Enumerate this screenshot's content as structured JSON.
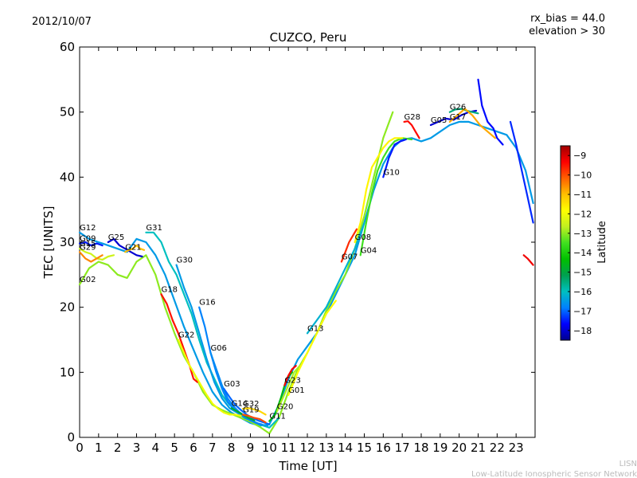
{
  "header": {
    "date": "2012/10/07",
    "bias": "rx_bias = 44.0",
    "elevation": "elevation > 30"
  },
  "footer": {
    "line1": "LISN",
    "line2": "Low-Latitude Ionospheric Sensor Network"
  },
  "colors": {
    "lat_scale": [
      "#00008f",
      "#0000ff",
      "#0080ff",
      "#00c0c0",
      "#00a050",
      "#00c000",
      "#40e020",
      "#c0f020",
      "#ffff00",
      "#ffc000",
      "#ff6000",
      "#ff0000",
      "#a00000"
    ],
    "footer_text": "#bbbbbb"
  },
  "chart_data": {
    "type": "line",
    "title": "CUZCO, Peru",
    "xlabel": "Time [UT]",
    "ylabel": "TEC [UNITS]",
    "xlim": [
      0,
      24
    ],
    "ylim": [
      0,
      60
    ],
    "xticks": [
      0,
      1,
      2,
      3,
      4,
      5,
      6,
      7,
      8,
      9,
      10,
      11,
      12,
      13,
      14,
      15,
      16,
      17,
      18,
      19,
      20,
      21,
      22,
      23
    ],
    "yticks": [
      0,
      10,
      20,
      30,
      40,
      50,
      60
    ],
    "grid": false,
    "colorbar": {
      "label": "Latitude",
      "min": -18.5,
      "max": -8.5,
      "ticks": [
        -9,
        -10,
        -11,
        -12,
        -13,
        -14,
        -15,
        -16,
        -17,
        -18
      ]
    },
    "series": [
      {
        "name": "G12",
        "lat": -16.5,
        "x": [
          0,
          0.5,
          1,
          1.5,
          2,
          2.5,
          3,
          3.5,
          4,
          4.5,
          5,
          5.5,
          6,
          6.5,
          7,
          7.5,
          8,
          8.5,
          9,
          9.5,
          10,
          10.5,
          11,
          11.5,
          12,
          12.5,
          13,
          13.5,
          14,
          14.5,
          15,
          15.5,
          16,
          16.5,
          17,
          17.5,
          18,
          18.5,
          19,
          19.5,
          20,
          20.5,
          21,
          21.5,
          22,
          22.5,
          23,
          23.5,
          23.9
        ],
        "y": [
          31.5,
          30.5,
          30,
          29.5,
          29,
          28.5,
          30.5,
          30,
          28,
          25,
          21,
          17,
          13.5,
          10,
          7,
          5,
          3.8,
          3,
          2.2,
          1.8,
          2,
          5,
          9,
          12,
          14,
          16,
          19,
          22,
          25,
          28,
          33,
          38,
          42,
          44.5,
          45.8,
          46,
          45.5,
          46,
          47,
          48,
          48.5,
          48.5,
          48,
          47.5,
          47,
          46.5,
          44.5,
          41,
          36
        ]
      },
      {
        "name": "G09",
        "lat": -17.5,
        "x": [
          0,
          0.3,
          0.6,
          0.9,
          1.2
        ],
        "y": [
          29.8,
          30,
          29.5,
          29.8,
          29.5
        ]
      },
      {
        "name": "G15",
        "lat": -12.5,
        "x": [
          0,
          0.3,
          0.6,
          0.9,
          1.2,
          1.5,
          1.8
        ],
        "y": [
          29,
          28.5,
          28.2,
          27.5,
          27.3,
          27.8,
          28
        ]
      },
      {
        "name": "G29",
        "lat": -10.5,
        "x": [
          0,
          0.3,
          0.6,
          0.9,
          1.2
        ],
        "y": [
          28.5,
          27.5,
          27,
          27.5,
          28
        ]
      },
      {
        "name": "G02",
        "lat": -13,
        "x": [
          0,
          0.5,
          1,
          1.5,
          2,
          2.5,
          3,
          3.5,
          4,
          4.5,
          5,
          5.5,
          6,
          6.5,
          7,
          7.5,
          8,
          8.5,
          9,
          9.5,
          10,
          10.5,
          11,
          11.5,
          12,
          12.5,
          13,
          13.5,
          14,
          14.5,
          15,
          15.5,
          16,
          16.5
        ],
        "y": [
          23.5,
          26,
          27,
          26.5,
          25,
          24.5,
          27,
          28,
          25,
          20,
          16,
          12.5,
          10,
          7,
          5,
          4.2,
          3.6,
          3,
          2.4,
          1.6,
          0.6,
          3,
          7,
          10.5,
          13,
          16,
          19.5,
          22.5,
          25,
          29,
          34,
          40,
          46,
          50
        ]
      },
      {
        "name": "G25",
        "lat": -18,
        "x": [
          1.5,
          1.8,
          2.1,
          2.4,
          2.7,
          3,
          3.3
        ],
        "y": [
          30,
          30.5,
          29.5,
          29,
          28.5,
          28,
          27.8
        ]
      },
      {
        "name": "G21",
        "lat": -11,
        "x": [
          2.4,
          2.6,
          2.8,
          3,
          3.2,
          3.4
        ],
        "y": [
          28.5,
          28.8,
          29,
          29.5,
          29,
          28.8
        ]
      },
      {
        "name": "G31",
        "lat": -16,
        "x": [
          3.5,
          3.9,
          4.3,
          4.7,
          5.1,
          5.5,
          5.9,
          6.3,
          6.7,
          7.1,
          7.5,
          7.9,
          8.3,
          8.7,
          9.1,
          9.5,
          10,
          10.5
        ],
        "y": [
          31.5,
          31.5,
          30,
          27,
          25,
          22,
          19,
          15,
          11.5,
          9,
          6.5,
          5,
          4,
          3.2,
          2.6,
          2,
          1.5,
          3
        ]
      },
      {
        "name": "G18",
        "lat": -9.5,
        "x": [
          4.3,
          4.6,
          4.9,
          5.2,
          5.5,
          5.8,
          6,
          6.2
        ],
        "y": [
          22,
          20.5,
          18,
          16,
          13.5,
          11,
          9,
          8.5
        ]
      },
      {
        "name": "G30",
        "lat": -16.5,
        "x": [
          5.1,
          5.5,
          5.9,
          6.3,
          6.7,
          7.1,
          7.5,
          7.9,
          8.3,
          8.7,
          9.1,
          9.5,
          9.9
        ],
        "y": [
          26.5,
          23,
          20,
          16,
          12,
          8.5,
          6,
          4.5,
          3.8,
          3,
          2.5,
          2,
          1.8
        ]
      },
      {
        "name": "G16",
        "lat": -16.8,
        "x": [
          6.3,
          6.6,
          6.9,
          7.2,
          7.5,
          7.8,
          8.1,
          8.4,
          8.7,
          9,
          9.3,
          9.6
        ],
        "y": [
          20,
          17,
          13,
          10,
          7.5,
          5.5,
          4.5,
          3.8,
          3.2,
          2.6,
          2.2,
          2
        ]
      },
      {
        "name": "G22",
        "lat": -12,
        "x": [
          5.2,
          5.5,
          5.8,
          6.1,
          6.4,
          6.7,
          7,
          7.3,
          7.6,
          7.9,
          8.2,
          8.5
        ],
        "y": [
          15,
          13,
          11,
          9.5,
          8,
          6.5,
          5.2,
          4.4,
          3.8,
          3.5,
          3.5,
          3.3
        ]
      },
      {
        "name": "G06",
        "lat": -16.7,
        "x": [
          6.9,
          7.2,
          7.5,
          7.8,
          8.1,
          8.4,
          8.7
        ],
        "y": [
          13,
          10.5,
          8,
          6,
          4.8,
          3.9,
          3.3
        ]
      },
      {
        "name": "G03",
        "lat": -17,
        "x": [
          7.6,
          7.9,
          8.2,
          8.5,
          8.8,
          9.1,
          9.4,
          9.7,
          10
        ],
        "y": [
          7.5,
          6.2,
          5,
          4.2,
          3.5,
          3,
          2.6,
          2.3,
          2
        ]
      },
      {
        "name": "G14",
        "lat": -14.8,
        "x": [
          8,
          8.3,
          8.6,
          8.9,
          9.2
        ],
        "y": [
          4.5,
          4,
          3.5,
          3,
          2.6
        ]
      },
      {
        "name": "G32",
        "lat": -11.3,
        "x": [
          8.6,
          8.9,
          9.2,
          9.5,
          9.8
        ],
        "y": [
          4.4,
          4.5,
          4.3,
          4,
          3.5
        ]
      },
      {
        "name": "G19",
        "lat": -10,
        "x": [
          8.6,
          8.9,
          9.2,
          9.5,
          9.8
        ],
        "y": [
          3.5,
          3.3,
          3,
          2.8,
          2.3
        ]
      },
      {
        "name": "G11",
        "lat": -14.5,
        "x": [
          10,
          10.3,
          10.6,
          10.9,
          11.2
        ],
        "y": [
          2.5,
          3.5,
          6,
          9,
          10
        ]
      },
      {
        "name": "G20",
        "lat": -12.8,
        "x": [
          10.4,
          10.7,
          11,
          11.3,
          11.6
        ],
        "y": [
          4,
          6,
          8,
          10,
          11
        ]
      },
      {
        "name": "G23",
        "lat": -9.3,
        "x": [
          10.8,
          11,
          11.2,
          11.4
        ],
        "y": [
          8,
          9.5,
          10.5,
          11
        ]
      },
      {
        "name": "G01",
        "lat": -11.8,
        "x": [
          11,
          11.5,
          12,
          12.5,
          13,
          13.5
        ],
        "y": [
          6.5,
          10,
          13,
          16,
          19,
          21
        ]
      },
      {
        "name": "G13",
        "lat": -16.2,
        "x": [
          12,
          12.5,
          13,
          13.5,
          14,
          14.5,
          15
        ],
        "y": [
          16,
          18,
          20,
          23,
          26,
          29,
          33
        ]
      },
      {
        "name": "G07",
        "lat": -9.7,
        "x": [
          13.8,
          14,
          14.2,
          14.4,
          14.6
        ],
        "y": [
          27,
          28.5,
          30,
          31,
          32
        ]
      },
      {
        "name": "G04",
        "lat": -13.5,
        "x": [
          14.8,
          15.1,
          15.4,
          15.7,
          16,
          16.3,
          16.6,
          17,
          17.5
        ],
        "y": [
          28,
          33,
          37.5,
          41,
          43,
          44.5,
          45.5,
          46,
          45.8
        ]
      },
      {
        "name": "G08",
        "lat": -11.7,
        "x": [
          14.5,
          14.8,
          15.1,
          15.4,
          15.7,
          16,
          16.3,
          16.6,
          17
        ],
        "y": [
          30,
          33,
          38,
          41.5,
          43,
          44.5,
          45.5,
          46,
          46
        ]
      },
      {
        "name": "G10",
        "lat": -17.5,
        "x": [
          16,
          16.3,
          16.6,
          16.9,
          17.2
        ],
        "y": [
          40,
          43,
          45,
          45.5,
          45.8
        ]
      },
      {
        "name": "G28",
        "lat": -9.4,
        "x": [
          17.1,
          17.3,
          17.5,
          17.7,
          17.9
        ],
        "y": [
          48.5,
          48.6,
          48,
          47,
          46
        ]
      },
      {
        "name": "G05",
        "lat": -18,
        "x": [
          18.5,
          18.9,
          19.3,
          19.7,
          20.1,
          20.5,
          20.9
        ],
        "y": [
          48,
          48.5,
          49,
          48.8,
          49.5,
          50,
          50.2
        ]
      },
      {
        "name": "G26",
        "lat": -15.5,
        "x": [
          19.5,
          19.8,
          20.1,
          20.4,
          20.7,
          21
        ],
        "y": [
          50,
          50.4,
          50.5,
          50.2,
          50,
          49.8
        ]
      },
      {
        "name": "G17",
        "lat": -10.8,
        "x": [
          19.5,
          19.9,
          20.3,
          20.7,
          21.1,
          21.5,
          21.9
        ],
        "y": [
          48.5,
          49.5,
          50.5,
          49.5,
          48,
          47,
          46
        ]
      },
      {
        "name": "",
        "lat": -17.6,
        "x": [
          21,
          21.2,
          21.5,
          21.8,
          22,
          22.3
        ],
        "y": [
          55,
          51,
          48.5,
          47.5,
          46,
          45
        ]
      },
      {
        "name": "",
        "lat": -17.4,
        "x": [
          22.7,
          23,
          23.3,
          23.6,
          23.9
        ],
        "y": [
          48.5,
          45,
          41,
          37,
          33
        ]
      },
      {
        "name": "",
        "lat": -9.2,
        "x": [
          23.4,
          23.6,
          23.9
        ],
        "y": [
          28,
          27.5,
          26.5
        ]
      }
    ]
  }
}
